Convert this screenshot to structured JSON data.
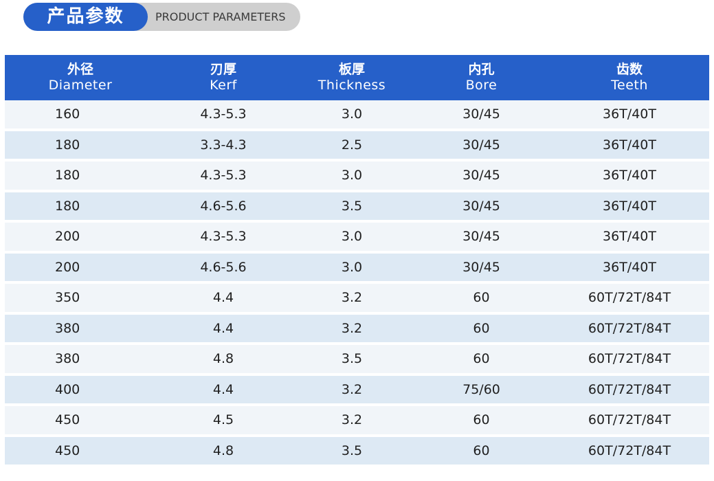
{
  "banner": {
    "title_cn": "产品参数",
    "title_en": "PRODUCT PARAMETERS"
  },
  "colors": {
    "header_blue": "#2660c9",
    "row_light": "#f1f5f9",
    "row_dark": "#dde9f4",
    "banner_gray": "#cfcfcf"
  },
  "table": {
    "headers": [
      {
        "cn": "外径",
        "en": "Diameter"
      },
      {
        "cn": "刃厚",
        "en": "Kerf"
      },
      {
        "cn": "板厚",
        "en": "Thickness"
      },
      {
        "cn": "内孔",
        "en": "Bore"
      },
      {
        "cn": "齿数",
        "en": "Teeth"
      }
    ],
    "rows": [
      [
        "160",
        "4.3-5.3",
        "3.0",
        "30/45",
        "36T/40T"
      ],
      [
        "180",
        "3.3-4.3",
        "2.5",
        "30/45",
        "36T/40T"
      ],
      [
        "180",
        "4.3-5.3",
        "3.0",
        "30/45",
        "36T/40T"
      ],
      [
        "180",
        "4.6-5.6",
        "3.5",
        "30/45",
        "36T/40T"
      ],
      [
        "200",
        "4.3-5.3",
        "3.0",
        "30/45",
        "36T/40T"
      ],
      [
        "200",
        "4.6-5.6",
        "3.0",
        "30/45",
        "36T/40T"
      ],
      [
        "350",
        "4.4",
        "3.2",
        "60",
        "60T/72T/84T"
      ],
      [
        "380",
        "4.4",
        "3.2",
        "60",
        "60T/72T/84T"
      ],
      [
        "380",
        "4.8",
        "3.5",
        "60",
        "60T/72T/84T"
      ],
      [
        "400",
        "4.4",
        "3.2",
        "75/60",
        "60T/72T/84T"
      ],
      [
        "450",
        "4.5",
        "3.2",
        "60",
        "60T/72T/84T"
      ],
      [
        "450",
        "4.8",
        "3.5",
        "60",
        "60T/72T/84T"
      ]
    ]
  }
}
